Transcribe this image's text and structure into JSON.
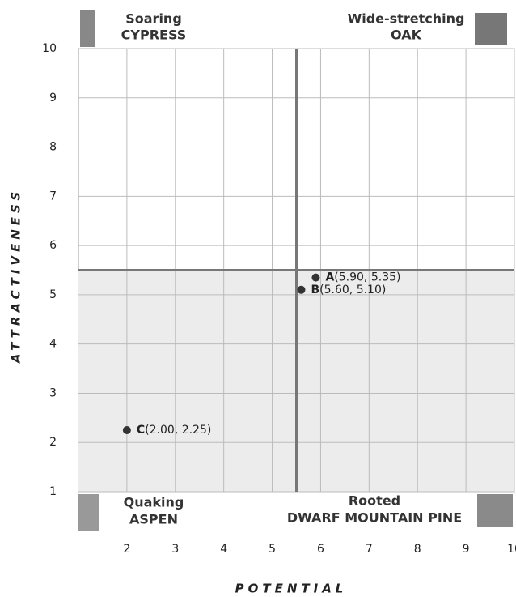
{
  "chart_data": {
    "type": "scatter",
    "x_label": "POTENTIAL",
    "y_label": "ATTRACTIVENESS",
    "xlim": [
      1,
      10
    ],
    "xticks": [
      2,
      3,
      4,
      5,
      6,
      7,
      8,
      9,
      10
    ],
    "ylim": [
      1,
      10
    ],
    "yticks": [
      1,
      2,
      3,
      4,
      5,
      6,
      7,
      8,
      9,
      10
    ],
    "grid": true,
    "color": "#333333",
    "x_divider": 5.5,
    "y_divider": 5.5,
    "point_names": [
      "A",
      "B",
      "C"
    ],
    "x": [
      5.9,
      5.6,
      2.0
    ],
    "values": [
      5.35,
      5.1,
      2.25
    ],
    "value_labels": [
      "(5.90, 5.35)",
      "(5.60, 5.10)",
      "(2.00, 2.25)"
    ],
    "quadrant_labels": {
      "top_left": [
        "Soaring",
        "CYPRESS"
      ],
      "top_right": [
        "Wide-stretching",
        "OAK"
      ],
      "bottom_left": [
        "Quaking",
        "ASPEN"
      ],
      "bottom_right": [
        "Rooted",
        "DWARF MOUNTAIN PINE"
      ]
    }
  }
}
